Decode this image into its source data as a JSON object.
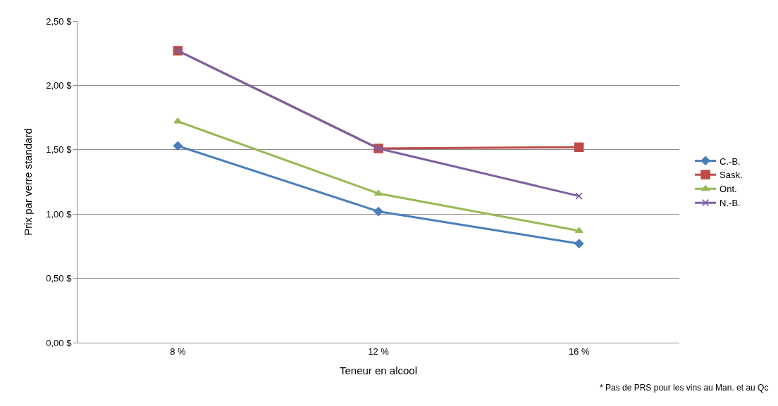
{
  "chart_data": {
    "type": "line",
    "xlabel": "Teneur en alcool",
    "ylabel": "Prix par verre standard",
    "categories": [
      "8 %",
      "12 %",
      "16 %"
    ],
    "series": [
      {
        "name": "C.-B.",
        "color": "#4a7ebb",
        "marker": "diamond",
        "values": [
          1.53,
          1.02,
          0.77
        ]
      },
      {
        "name": "Sask.",
        "color": "#be4b48",
        "marker": "square",
        "values": [
          2.27,
          1.51,
          1.52
        ]
      },
      {
        "name": "Ont.",
        "color": "#98b954",
        "marker": "triangle",
        "values": [
          1.72,
          1.16,
          0.87
        ]
      },
      {
        "name": "N.-B.",
        "color": "#7d60a0",
        "marker": "cross",
        "values": [
          2.27,
          1.51,
          1.14
        ]
      }
    ],
    "ylim": [
      0,
      2.5
    ],
    "yticks": [
      {
        "value": 0,
        "label": "0,00 $"
      },
      {
        "value": 0.5,
        "label": "0,50 $"
      },
      {
        "value": 1,
        "label": "1,00 $"
      },
      {
        "value": 1.5,
        "label": "1,50 $"
      },
      {
        "value": 2,
        "label": "2,00 $"
      },
      {
        "value": 2.5,
        "label": "2,50 $"
      }
    ],
    "grid": "y",
    "legend": "right",
    "line_style": "solid",
    "annotations": [
      "* Pas de PRS pour les vins au Man. et au Qc"
    ]
  }
}
